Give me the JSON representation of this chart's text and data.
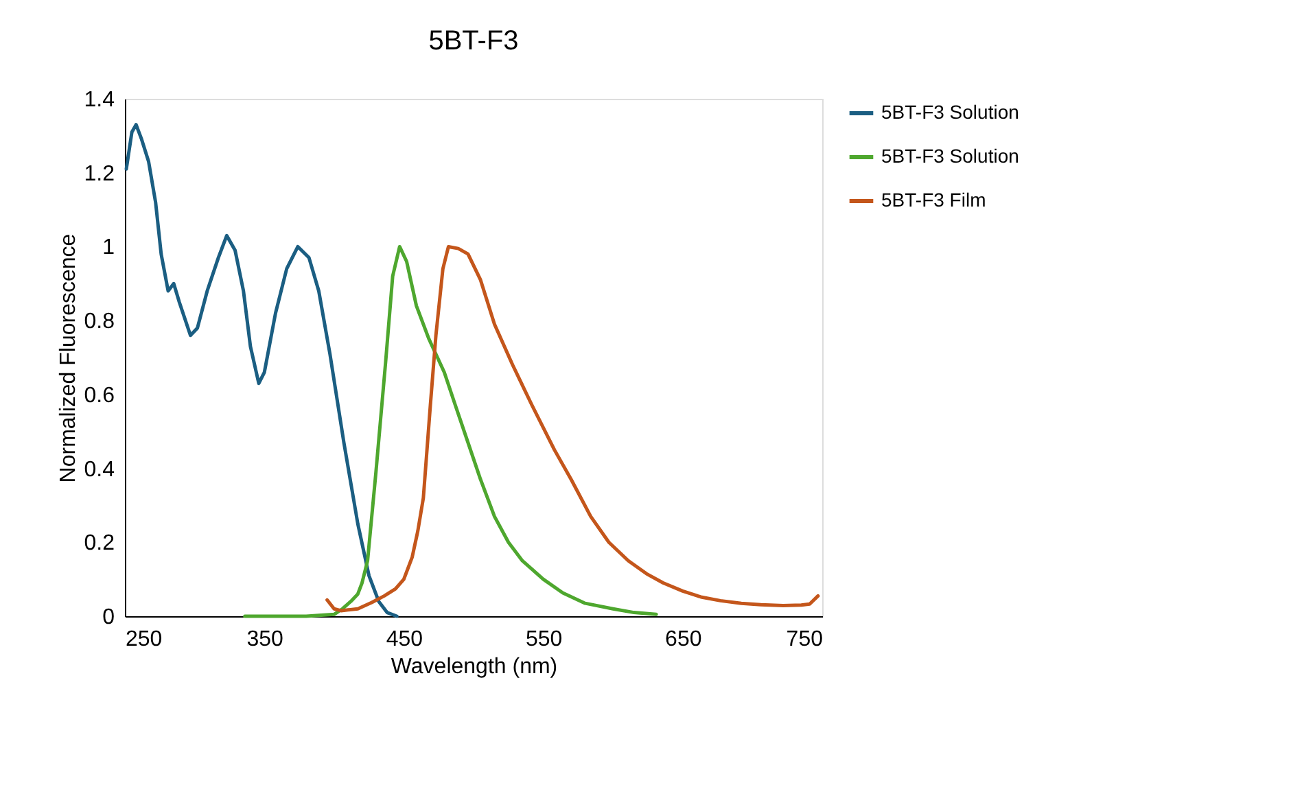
{
  "chart_data": {
    "type": "line",
    "title": "5BT-F3",
    "xlabel": "Wavelength (nm)",
    "ylabel": "Normalized Fluorescence",
    "xlim": [
      250,
      750
    ],
    "xticks": [
      250,
      350,
      450,
      550,
      650,
      750
    ],
    "ylim": [
      0,
      1.4
    ],
    "yticks": [
      0,
      0.2,
      0.4,
      0.6,
      0.8,
      1,
      1.2,
      1.4
    ],
    "grid": false,
    "legend": "right",
    "marker": "none",
    "line_style": "solid",
    "series": [
      {
        "name": "5BT-F3 Solution",
        "color": "#1b5e82",
        "x": [
          251,
          255,
          258,
          262,
          267,
          272,
          276,
          281,
          285,
          289,
          297,
          302,
          309,
          317,
          323,
          329,
          335,
          340,
          346,
          350,
          358,
          366,
          374,
          382,
          389,
          397,
          407,
          417,
          425,
          432,
          438,
          445
        ],
        "values": [
          1.21,
          1.31,
          1.33,
          1.29,
          1.23,
          1.12,
          0.98,
          0.88,
          0.9,
          0.85,
          0.76,
          0.78,
          0.88,
          0.97,
          1.03,
          0.99,
          0.88,
          0.73,
          0.63,
          0.66,
          0.82,
          0.94,
          1.0,
          0.97,
          0.88,
          0.71,
          0.47,
          0.25,
          0.11,
          0.04,
          0.01,
          0.0
        ]
      },
      {
        "name": "5BT-F3 Solution",
        "color": "#4ea72e",
        "x": [
          336,
          380,
          400,
          406,
          412,
          417,
          420,
          424,
          430,
          437,
          442,
          447,
          452,
          459,
          468,
          479,
          487,
          496,
          505,
          515,
          525,
          535,
          550,
          564,
          580,
          600,
          615,
          631
        ],
        "values": [
          0.0,
          0.0,
          0.005,
          0.02,
          0.04,
          0.06,
          0.09,
          0.15,
          0.39,
          0.69,
          0.92,
          1.0,
          0.96,
          0.84,
          0.75,
          0.66,
          0.57,
          0.47,
          0.37,
          0.27,
          0.2,
          0.15,
          0.1,
          0.063,
          0.035,
          0.02,
          0.01,
          0.005
        ]
      },
      {
        "name": "5BT-F3 Film",
        "color": "#c4561b",
        "x": [
          395,
          400,
          405,
          410,
          417,
          427,
          436,
          444,
          450,
          456,
          460,
          464,
          469,
          473,
          478,
          482,
          489,
          496,
          505,
          515,
          528,
          542,
          558,
          570,
          584,
          597,
          611,
          624,
          636,
          650,
          663,
          677,
          692,
          706,
          722,
          735,
          741,
          747
        ],
        "values": [
          0.044,
          0.02,
          0.015,
          0.017,
          0.02,
          0.037,
          0.055,
          0.074,
          0.1,
          0.16,
          0.23,
          0.32,
          0.57,
          0.76,
          0.94,
          1.0,
          0.995,
          0.98,
          0.91,
          0.79,
          0.68,
          0.57,
          0.45,
          0.37,
          0.27,
          0.2,
          0.15,
          0.115,
          0.09,
          0.068,
          0.052,
          0.042,
          0.035,
          0.031,
          0.029,
          0.03,
          0.033,
          0.055
        ]
      }
    ]
  }
}
